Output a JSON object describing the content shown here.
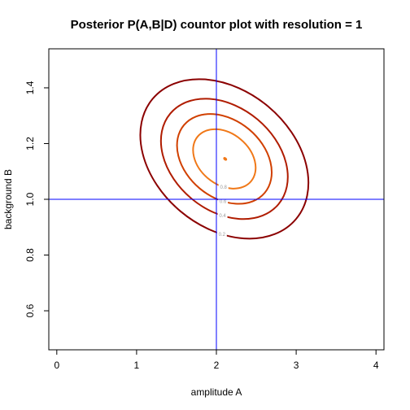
{
  "chart_data": {
    "type": "contour",
    "title": "Posterior P(A,B|D) countor plot with resolution  = 1",
    "xlabel": "amplitude A",
    "ylabel": "background B",
    "xlim": [
      -0.1,
      4.1
    ],
    "ylim": [
      0.46,
      1.54
    ],
    "xticks": [
      "0",
      "1",
      "2",
      "3",
      "4"
    ],
    "yticks": [
      "0.6",
      "0.8",
      "1.0",
      "1.2",
      "1.4"
    ],
    "peak": {
      "A": 2.1,
      "B": 1.145
    },
    "reference_lines": {
      "A": 2.0,
      "B": 1.0,
      "color": "#0000ff"
    },
    "contours": [
      {
        "level": 0.2,
        "label": "0.2",
        "color": "#8b0000"
      },
      {
        "level": 0.4,
        "label": "0.4",
        "color": "#b01c00"
      },
      {
        "level": 0.6,
        "label": "0.6",
        "color": "#d14000"
      },
      {
        "level": 0.8,
        "label": "0.8",
        "color": "#f07818"
      }
    ],
    "grid": false
  }
}
